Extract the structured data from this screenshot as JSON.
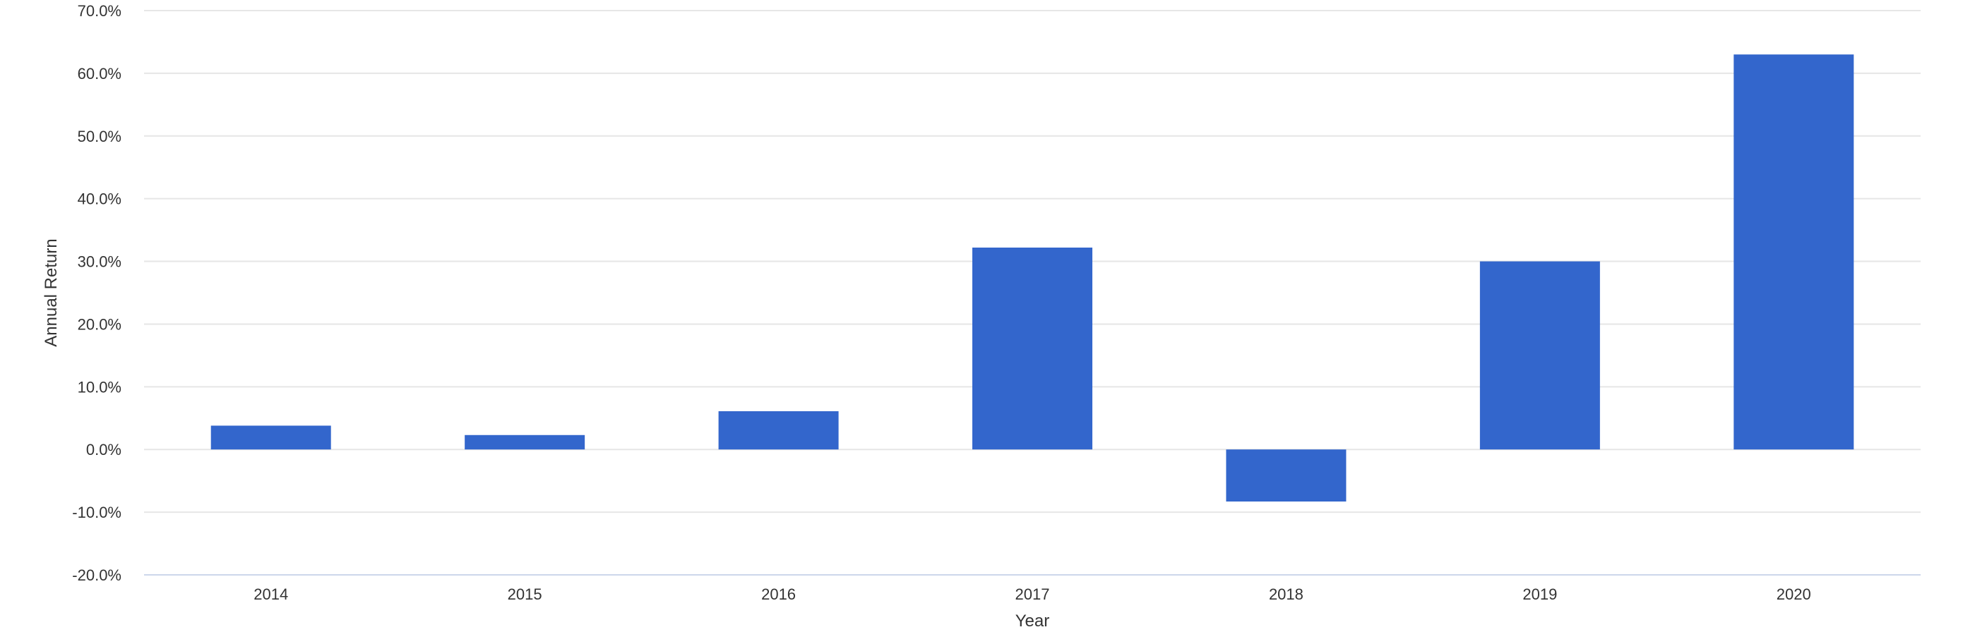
{
  "chart_data": {
    "type": "bar",
    "title": "",
    "xlabel": "Year",
    "ylabel": "Annual Return",
    "categories": [
      "2014",
      "2015",
      "2016",
      "2017",
      "2018",
      "2019",
      "2020"
    ],
    "series": [
      {
        "values": [
          3.8,
          2.3,
          6.1,
          32.2,
          -8.3,
          30.0,
          63.0
        ]
      }
    ],
    "ylim": [
      -20,
      70
    ],
    "yticks": [
      -20,
      -10,
      0,
      10,
      20,
      30,
      40,
      50,
      60,
      70
    ],
    "ytick_labels": [
      "-20.0%",
      "-10.0%",
      "0.0%",
      "10.0%",
      "20.0%",
      "30.0%",
      "40.0%",
      "50.0%",
      "60.0%",
      "70.0%"
    ],
    "grid": true,
    "legend": "none",
    "bar_color": "#3366cc",
    "gridline_color": "#e6e6e6",
    "axis_line_color": "#ccd6eb",
    "text_color": "#333333"
  }
}
